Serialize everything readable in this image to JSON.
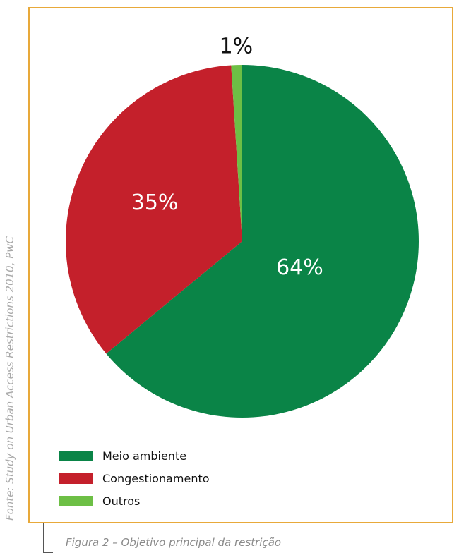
{
  "source_note": "Fonte: Study on Urban Access Restrictions 2010, PwC",
  "caption": "Figura 2 – Objetivo principal da restrição",
  "chart_data": {
    "type": "pie",
    "slices": [
      {
        "name": "Meio ambiente",
        "value": 64,
        "label": "64%",
        "color": "#0a8447",
        "label_color": "#ffffff"
      },
      {
        "name": "Congestionamento",
        "value": 35,
        "label": "35%",
        "color": "#c4202b",
        "label_color": "#ffffff"
      },
      {
        "name": "Outros",
        "value": 1,
        "label": "1%",
        "color": "#6dbf45",
        "label_color": "#111111"
      }
    ],
    "start": "12 o'clock",
    "direction": "clockwise",
    "legend_position": "bottom-left"
  },
  "colors": {
    "frame_border": "#e8a93a"
  }
}
